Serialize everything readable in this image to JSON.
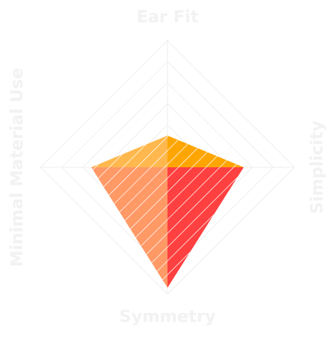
{
  "chart_data": {
    "type": "radar",
    "title": "",
    "axes": [
      "Ear Fit",
      "Simplicity",
      "Symmetry",
      "Minimal Material Use"
    ],
    "values": [
      0.25,
      0.6,
      0.95,
      0.6
    ],
    "range": [
      0,
      1
    ],
    "rings": 6,
    "grid": true,
    "legend": "none",
    "colors": {
      "top_left": "#FFB84D",
      "top_right": "#FFA500",
      "bottom_left": "#FF9966",
      "bottom_right": "#FF4040",
      "grid": "#EEEEEE",
      "axis_label": "#F2F2F2",
      "hatch": "#FFFFFF"
    }
  }
}
